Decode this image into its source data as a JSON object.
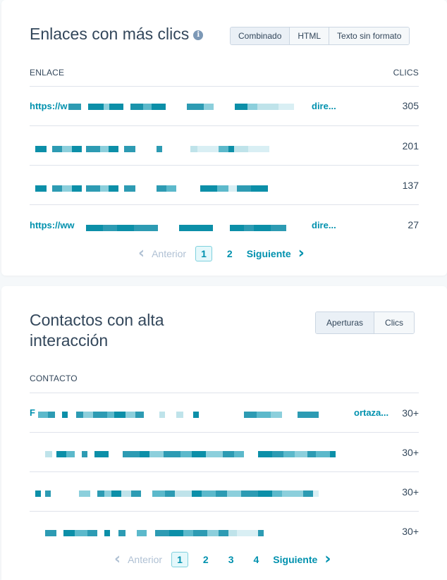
{
  "links_card": {
    "title": "Enlaces con más clics",
    "segments": [
      "Combinado",
      "HTML",
      "Texto sin formato"
    ],
    "col_link": "ENLACE",
    "col_clicks": "CLICS",
    "rows": [
      {
        "prefix": "https://w",
        "suffix": "dire...",
        "clicks": "305"
      },
      {
        "prefix": "",
        "suffix": "",
        "clicks": "201"
      },
      {
        "prefix": "",
        "suffix": "",
        "clicks": "137"
      },
      {
        "prefix": "https://ww",
        "suffix": "dire...",
        "clicks": "27"
      }
    ],
    "pager": {
      "prev": "Anterior",
      "pages": [
        "1",
        "2"
      ],
      "next": "Siguiente"
    }
  },
  "contacts_card": {
    "title": "Contactos con alta interacción",
    "segments": [
      "Aperturas",
      "Clics"
    ],
    "col_contact": "CONTACTO",
    "rows": [
      {
        "prefix": "F",
        "suffix": "ortaza...",
        "value": "30+"
      },
      {
        "prefix": "",
        "suffix": "",
        "value": "30+"
      },
      {
        "prefix": "",
        "suffix": "",
        "value": "30+"
      },
      {
        "prefix": "",
        "suffix": "",
        "value": "30+"
      }
    ],
    "pager": {
      "prev": "Anterior",
      "pages": [
        "1",
        "2",
        "3",
        "4"
      ],
      "next": "Siguiente"
    }
  },
  "colors": {
    "accent": "#0091ae",
    "text": "#33475b",
    "muted": "#b0c1d4"
  }
}
